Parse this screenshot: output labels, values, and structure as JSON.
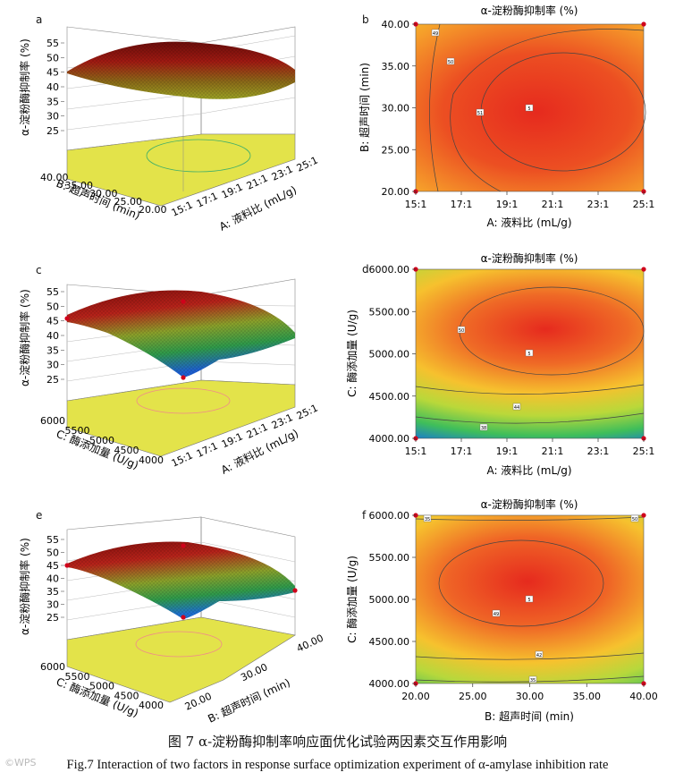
{
  "caption": {
    "cn": "图 7   α-淀粉酶抑制率响应面优化试验两因素交互作用影响",
    "en": "Fig.7   Interaction of two factors in response surface optimization experiment of α-amylase inhibition rate"
  },
  "watermark": "©WPS",
  "colors": {
    "high": "#e62a1e",
    "mid": "#f0e028",
    "low": "#1a8fd8",
    "floor": "#e3e34a",
    "design_point": "#d0021b"
  },
  "chart_data": [
    {
      "panel": "a",
      "type": "surface3d",
      "zlabel": "α-淀粉酶抑制率 (%)",
      "zticks": [
        "25",
        "30",
        "35",
        "40",
        "45",
        "50",
        "55"
      ],
      "xlabel": "A: 液料比 (mL/g)",
      "xticks": [
        "15:1",
        "17:1",
        "19:1",
        "21:1",
        "23:1",
        "25:1"
      ],
      "ylabel": "B: 超声时间 (min)",
      "yticks": [
        "20.00",
        "25.00",
        "30.00",
        "35.00",
        "40.00"
      ],
      "zrange": [
        25,
        55
      ],
      "surface_range": [
        44,
        53
      ]
    },
    {
      "panel": "b",
      "type": "contour",
      "title": "α-淀粉酶抑制率 (%)",
      "xlabel": "A: 液料比 (mL/g)",
      "xticks": [
        "15:1",
        "17:1",
        "19:1",
        "21:1",
        "23:1",
        "25:1"
      ],
      "ylabel": "B: 超声时间 (min)",
      "yticks": [
        "20.00",
        "25.00",
        "30.00",
        "35.00",
        "40.00"
      ],
      "xrange": [
        15,
        25
      ],
      "yrange": [
        20,
        40
      ],
      "center_label": "5",
      "contour_labels": [
        "49",
        "50",
        "51"
      ]
    },
    {
      "panel": "c",
      "type": "surface3d",
      "zlabel": "α-淀粉酶抑制率 (%)",
      "zticks": [
        "25",
        "30",
        "35",
        "40",
        "45",
        "50",
        "55"
      ],
      "xlabel": "A: 液料比 (mL/g)",
      "xticks": [
        "15:1",
        "17:1",
        "19:1",
        "21:1",
        "23:1",
        "25:1"
      ],
      "ylabel": "C: 酶添加量 (U/g)",
      "yticks": [
        "4000",
        "4500",
        "5000",
        "5500",
        "6000"
      ],
      "zrange": [
        25,
        55
      ],
      "surface_range": [
        25,
        53
      ]
    },
    {
      "panel": "d",
      "type": "contour",
      "title": "α-淀粉酶抑制率 (%)",
      "xlabel": "A: 液料比 (mL/g)",
      "xticks": [
        "15:1",
        "17:1",
        "19:1",
        "21:1",
        "23:1",
        "25:1"
      ],
      "ylabel": "C: 酶添加量 (U/g)",
      "yticks": [
        "4000.00",
        "4500.00",
        "5000.00",
        "5500.00",
        "6000.00"
      ],
      "xrange": [
        15,
        25
      ],
      "yrange": [
        4000,
        6000
      ],
      "center_label": "5",
      "contour_labels": [
        "50",
        "44",
        "38"
      ]
    },
    {
      "panel": "e",
      "type": "surface3d",
      "zlabel": "α-淀粉酶抑制率 (%)",
      "zticks": [
        "25",
        "30",
        "35",
        "40",
        "45",
        "50",
        "55"
      ],
      "xlabel": "B: 超声时间 (min)",
      "xticks": [
        "20.00",
        "30.00",
        "40.00"
      ],
      "ylabel": "C: 酶添加量 (U/g)",
      "yticks": [
        "4000",
        "4500",
        "5000",
        "5500",
        "6000"
      ],
      "zrange": [
        25,
        55
      ],
      "surface_range": [
        28,
        53
      ]
    },
    {
      "panel": "f",
      "type": "contour",
      "title": "α-淀粉酶抑制率 (%)",
      "xlabel": "B: 超声时间 (min)",
      "xticks": [
        "20.00",
        "25.00",
        "30.00",
        "35.00",
        "40.00"
      ],
      "ylabel": "C: 酶添加量 (U/g)",
      "yticks": [
        "4000.00",
        "4500.00",
        "5000.00",
        "5500.00",
        "6000.00"
      ],
      "xrange": [
        20,
        40
      ],
      "yrange": [
        4000,
        6000
      ],
      "center_label": "5",
      "contour_labels": [
        "49",
        "42",
        "35",
        "35",
        "50"
      ]
    }
  ]
}
